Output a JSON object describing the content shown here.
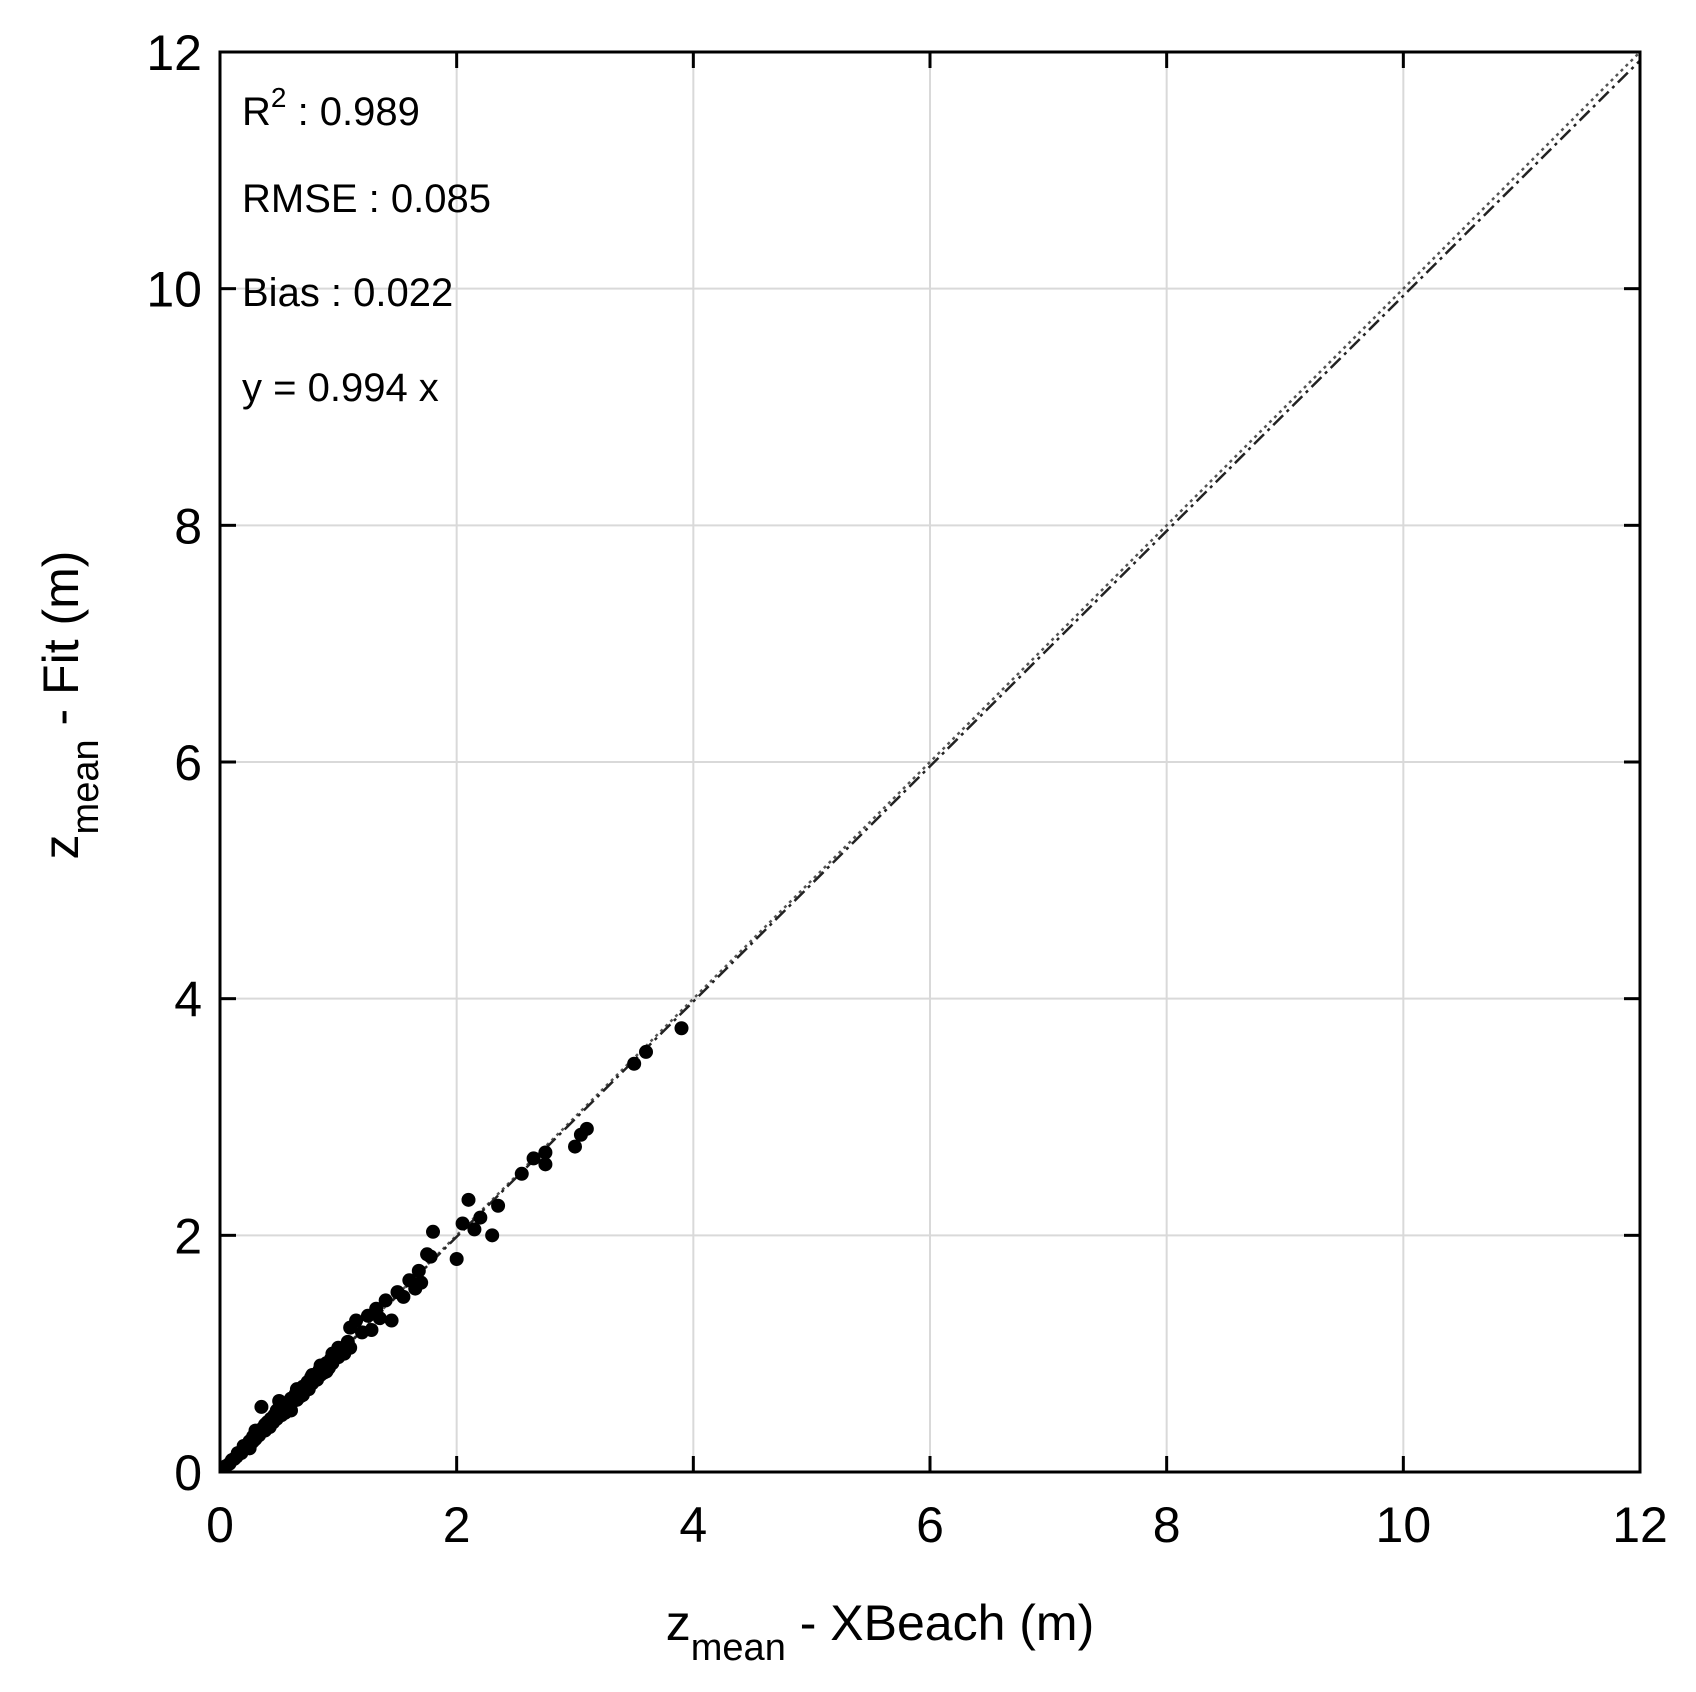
{
  "chart_data": {
    "type": "scatter",
    "xlabel": {
      "base": "z",
      "subscript": "mean",
      "rest": " - XBeach (m)"
    },
    "ylabel": {
      "base": "z",
      "subscript": "mean",
      "rest": " - Fit (m)"
    },
    "xlim": [
      0,
      12
    ],
    "ylim": [
      0,
      12
    ],
    "xticks": [
      "0",
      "2",
      "4",
      "6",
      "8",
      "10",
      "12"
    ],
    "yticks": [
      "0",
      "2",
      "4",
      "6",
      "8",
      "10",
      "12"
    ],
    "grid": true,
    "stats": {
      "r2_base": "R",
      "r2_sup": "2",
      "r2_rest": " : 0.989",
      "rmse": "RMSE : 0.085",
      "bias": "Bias : 0.022",
      "fit": "y = 0.994 x"
    },
    "fit_line": {
      "slope": 0.994,
      "intercept": 0
    },
    "ref_line": {
      "slope": 1,
      "intercept": 0
    },
    "colors": {
      "points": "#000000",
      "grid": "#d9d9d9",
      "axes": "#000000"
    },
    "points": [
      [
        0.05,
        0.05
      ],
      [
        0.08,
        0.07
      ],
      [
        0.1,
        0.1
      ],
      [
        0.12,
        0.11
      ],
      [
        0.14,
        0.13
      ],
      [
        0.15,
        0.16
      ],
      [
        0.18,
        0.16
      ],
      [
        0.2,
        0.2
      ],
      [
        0.22,
        0.21
      ],
      [
        0.24,
        0.23
      ],
      [
        0.25,
        0.26
      ],
      [
        0.27,
        0.25
      ],
      [
        0.28,
        0.3
      ],
      [
        0.3,
        0.28
      ],
      [
        0.31,
        0.33
      ],
      [
        0.33,
        0.31
      ],
      [
        0.35,
        0.34
      ],
      [
        0.36,
        0.37
      ],
      [
        0.38,
        0.35
      ],
      [
        0.4,
        0.42
      ],
      [
        0.42,
        0.38
      ],
      [
        0.43,
        0.45
      ],
      [
        0.45,
        0.43
      ],
      [
        0.46,
        0.48
      ],
      [
        0.48,
        0.45
      ],
      [
        0.5,
        0.52
      ],
      [
        0.52,
        0.48
      ],
      [
        0.53,
        0.55
      ],
      [
        0.55,
        0.52
      ],
      [
        0.57,
        0.58
      ],
      [
        0.58,
        0.54
      ],
      [
        0.6,
        0.62
      ],
      [
        0.62,
        0.6
      ],
      [
        0.64,
        0.66
      ],
      [
        0.65,
        0.61
      ],
      [
        0.67,
        0.7
      ],
      [
        0.68,
        0.66
      ],
      [
        0.7,
        0.72
      ],
      [
        0.72,
        0.69
      ],
      [
        0.74,
        0.76
      ],
      [
        0.75,
        0.72
      ],
      [
        0.77,
        0.8
      ],
      [
        0.78,
        0.75
      ],
      [
        0.8,
        0.82
      ],
      [
        0.82,
        0.78
      ],
      [
        0.84,
        0.86
      ],
      [
        0.85,
        0.82
      ],
      [
        0.87,
        0.9
      ],
      [
        0.88,
        0.85
      ],
      [
        0.9,
        0.92
      ],
      [
        0.92,
        0.88
      ],
      [
        0.94,
        0.96
      ],
      [
        0.95,
        0.92
      ],
      [
        0.97,
        0.99
      ],
      [
        1.0,
        0.97
      ],
      [
        1.02,
        1.04
      ],
      [
        1.05,
        1.0
      ],
      [
        1.08,
        1.1
      ],
      [
        1.1,
        1.05
      ],
      [
        1.1,
        1.22
      ],
      [
        1.15,
        1.28
      ],
      [
        1.2,
        1.18
      ],
      [
        1.25,
        1.32
      ],
      [
        1.28,
        1.2
      ],
      [
        1.32,
        1.38
      ],
      [
        1.35,
        1.3
      ],
      [
        1.4,
        1.45
      ],
      [
        1.45,
        1.28
      ],
      [
        1.5,
        1.52
      ],
      [
        1.55,
        1.48
      ],
      [
        1.6,
        1.62
      ],
      [
        1.65,
        1.55
      ],
      [
        1.68,
        1.7
      ],
      [
        1.7,
        1.6
      ],
      [
        1.75,
        1.84
      ],
      [
        1.8,
        2.03
      ],
      [
        1.78,
        1.82
      ],
      [
        2.0,
        1.8
      ],
      [
        2.05,
        2.1
      ],
      [
        2.1,
        2.3
      ],
      [
        2.15,
        2.05
      ],
      [
        2.2,
        2.15
      ],
      [
        2.3,
        2.0
      ],
      [
        2.35,
        2.25
      ],
      [
        2.55,
        2.52
      ],
      [
        2.65,
        2.65
      ],
      [
        2.75,
        2.7
      ],
      [
        2.75,
        2.6
      ],
      [
        3.0,
        2.75
      ],
      [
        3.05,
        2.85
      ],
      [
        3.1,
        2.9
      ],
      [
        3.5,
        3.45
      ],
      [
        3.6,
        3.55
      ],
      [
        3.9,
        3.75
      ],
      [
        0.35,
        0.55
      ],
      [
        0.45,
        0.42
      ],
      [
        0.5,
        0.6
      ],
      [
        0.6,
        0.52
      ],
      [
        0.7,
        0.65
      ],
      [
        0.8,
        0.78
      ],
      [
        0.9,
        0.85
      ],
      [
        1.0,
        1.05
      ],
      [
        0.25,
        0.2
      ],
      [
        0.3,
        0.35
      ],
      [
        0.4,
        0.38
      ],
      [
        0.55,
        0.5
      ],
      [
        0.65,
        0.7
      ],
      [
        0.75,
        0.7
      ],
      [
        0.85,
        0.9
      ],
      [
        0.95,
        1.0
      ],
      [
        0.2,
        0.22
      ],
      [
        0.28,
        0.26
      ],
      [
        0.38,
        0.4
      ],
      [
        0.48,
        0.52
      ],
      [
        0.58,
        0.56
      ],
      [
        0.68,
        0.64
      ],
      [
        0.78,
        0.82
      ],
      [
        0.88,
        0.84
      ]
    ]
  }
}
